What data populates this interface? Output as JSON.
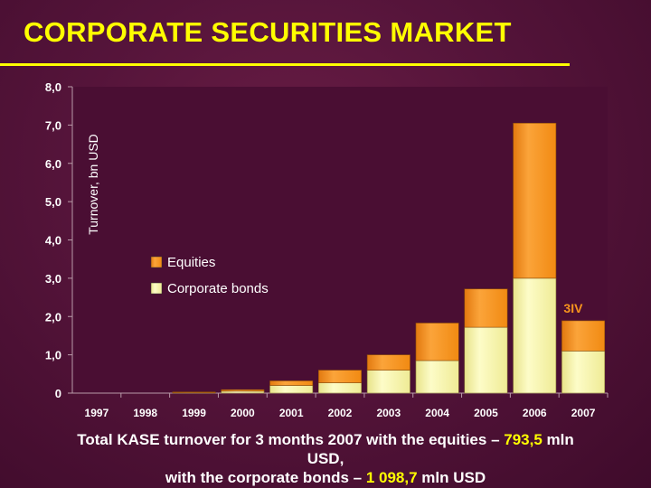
{
  "title": "CORPORATE SECURITIES MARKET",
  "caption": {
    "line1_prefix": "Total KASE turnover for 3 months 2007 with the equities – ",
    "equities_value": "793,5",
    "line1_suffix": " mln",
    "line2": "USD,",
    "line3_prefix": "with the corporate bonds – ",
    "bonds_value": "1 098,7",
    "line3_suffix": " mln USD"
  },
  "colors": {
    "title": "#ffff00",
    "equities": "#f7941d",
    "corporate_bonds": "#f5f3a3",
    "plot_bg": "#4a0e33",
    "annotation": "#f7941d"
  },
  "chart_data": {
    "type": "bar",
    "stacked": true,
    "ylabel": "Turnover,    bn USD",
    "xlabel": "",
    "ylim": [
      0,
      8
    ],
    "yticks": [
      "0",
      "1,0",
      "2,0",
      "3,0",
      "4,0",
      "5,0",
      "6,0",
      "7,0",
      "8,0"
    ],
    "categories": [
      "1997",
      "1998",
      "1999",
      "2000",
      "2001",
      "2002",
      "2003",
      "2004",
      "2005",
      "2006",
      "2007"
    ],
    "series": [
      {
        "name": "Corporate bonds",
        "values": [
          0.0,
          0.0,
          0.01,
          0.05,
          0.2,
          0.27,
          0.6,
          0.85,
          1.72,
          3.0,
          1.1
        ]
      },
      {
        "name": "Equities",
        "values": [
          0.0,
          0.0,
          0.02,
          0.04,
          0.12,
          0.33,
          0.4,
          0.98,
          1.0,
          4.05,
          0.79
        ]
      }
    ],
    "legend": "upper-left",
    "annotations": [
      {
        "text": "3IV",
        "category": "2007"
      }
    ],
    "grid": false
  }
}
